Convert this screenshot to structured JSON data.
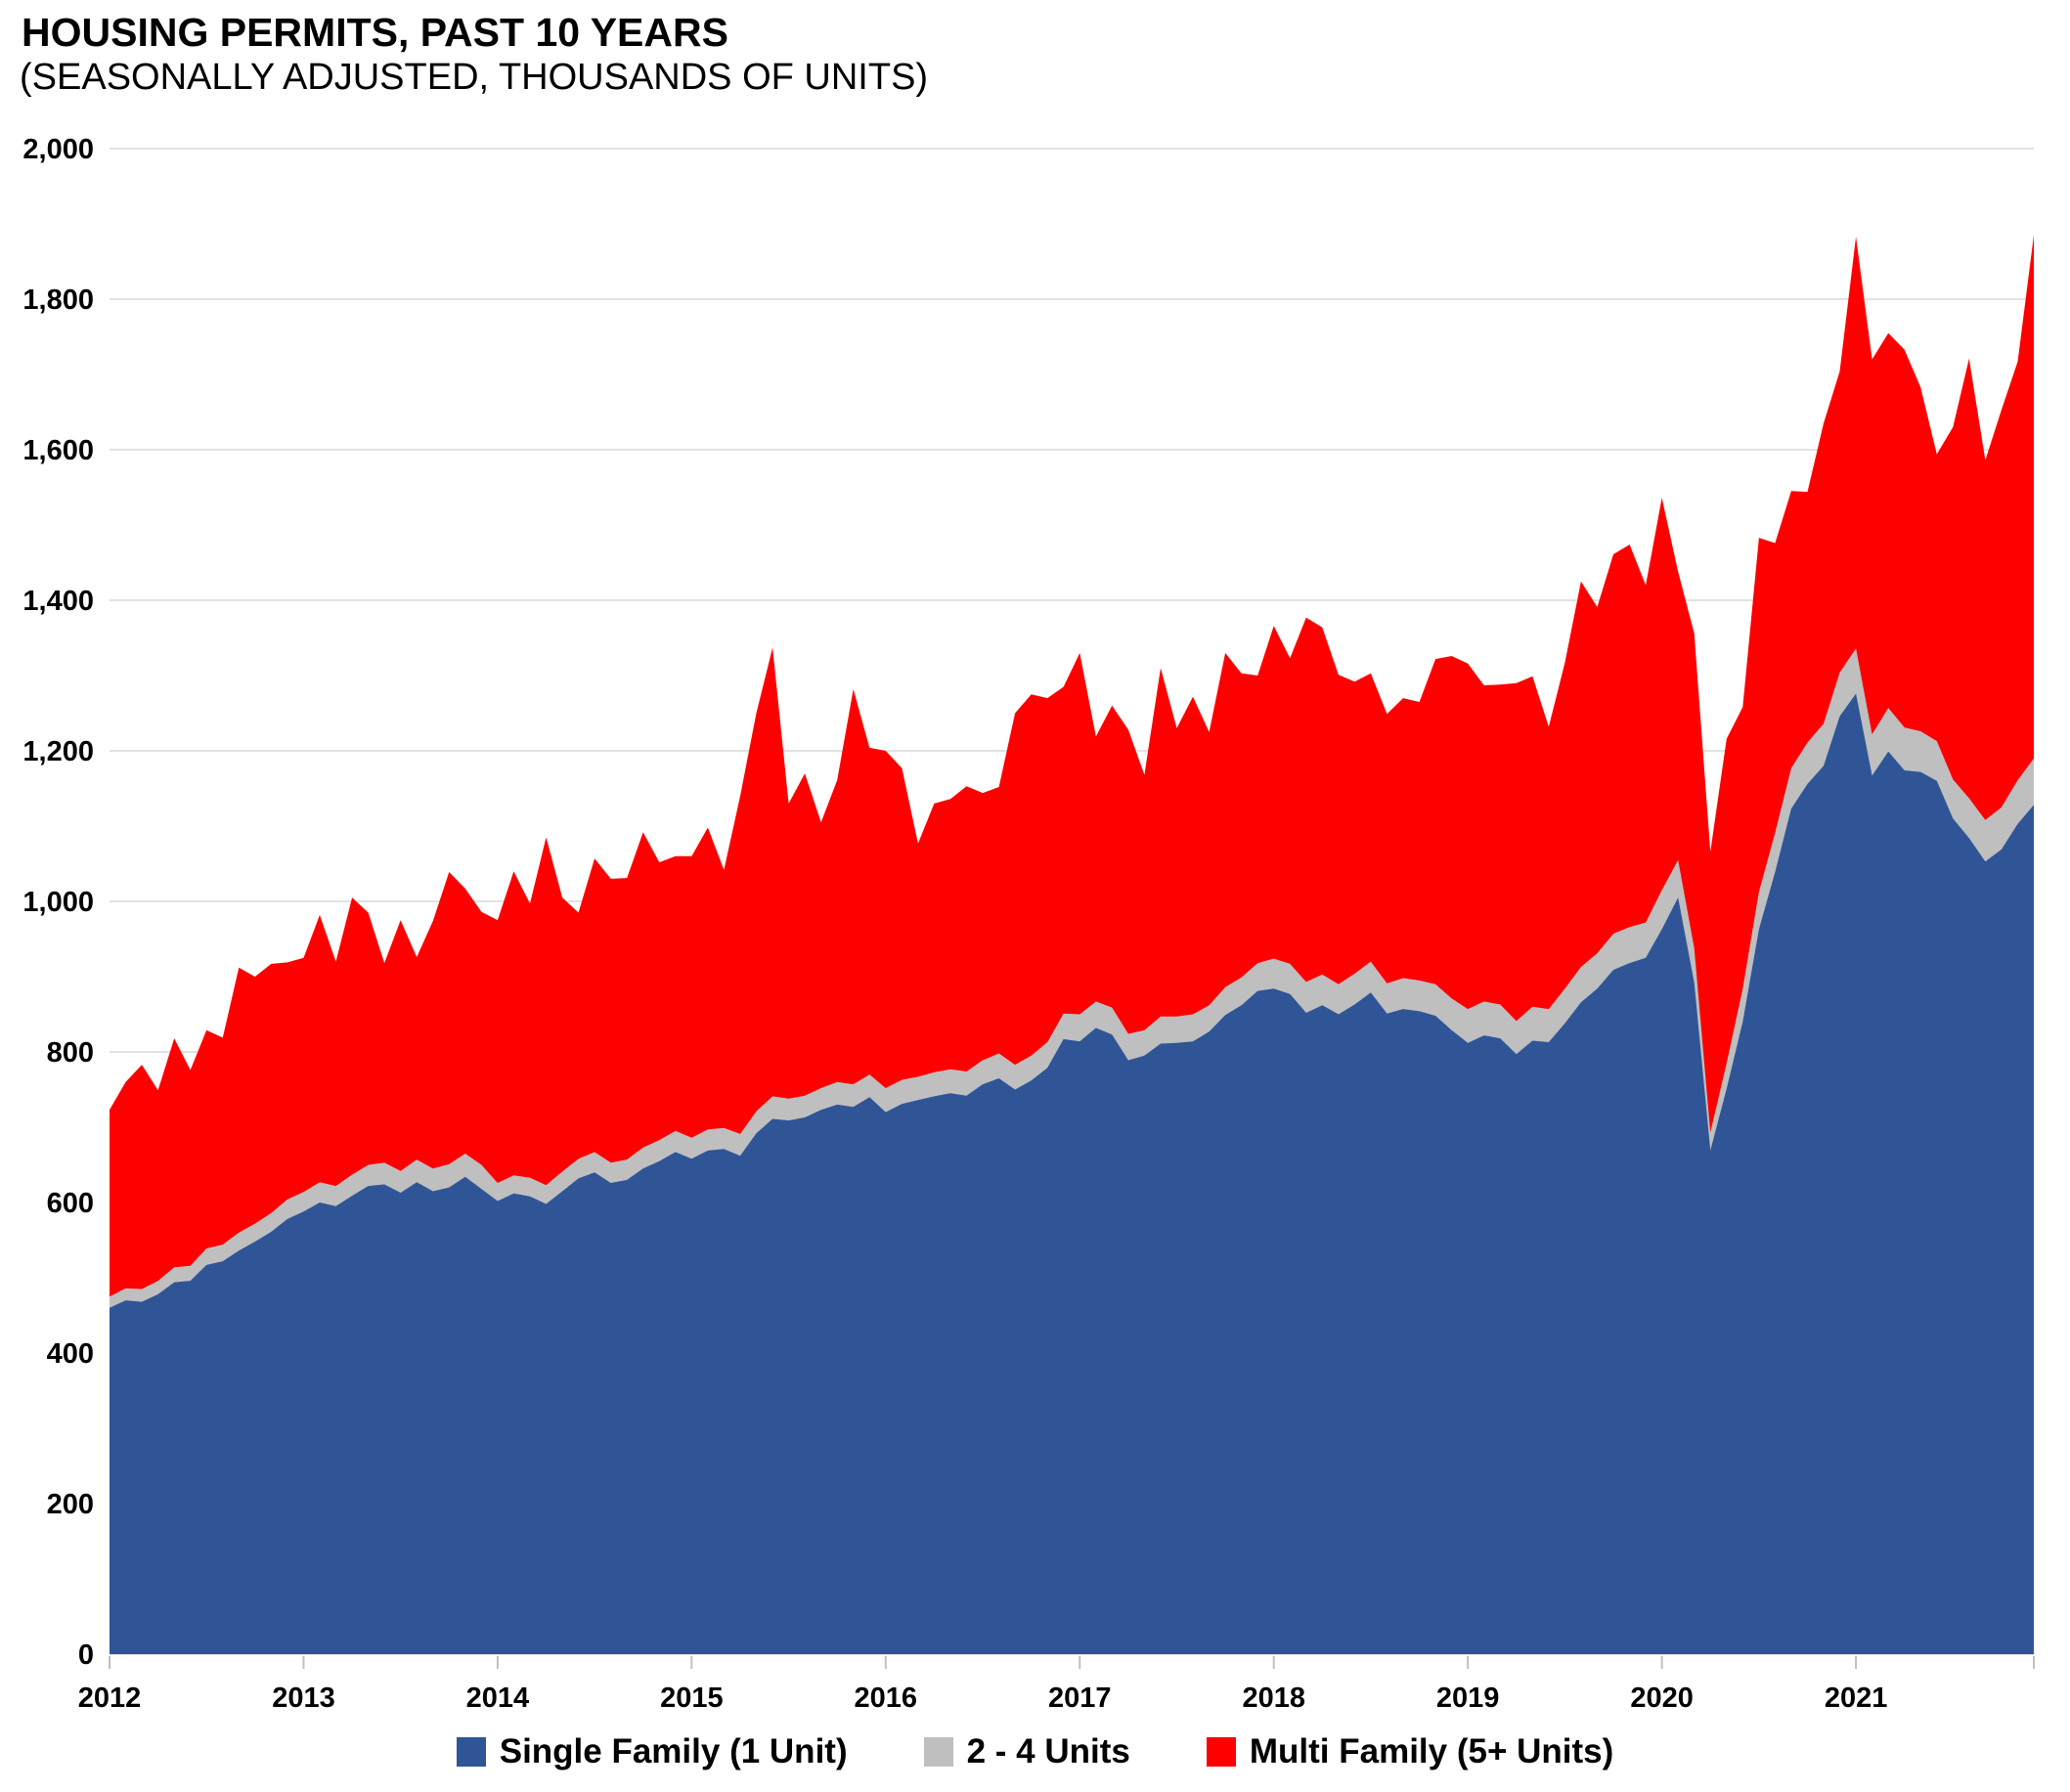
{
  "header": {
    "title": "HOUSING PERMITS, PAST 10 YEARS",
    "subtitle": "(SEASONALLY ADJUSTED, THOUSANDS OF UNITS)"
  },
  "colors": {
    "single_family": "#2F5597",
    "units_2_4": "#BFBFBF",
    "multi_family": "#FF0000",
    "gridline": "#D9D9D9",
    "axis_tick": "#BFBFBF",
    "text": "#000000",
    "background": "#FFFFFF"
  },
  "legend": {
    "position": "bottom-center",
    "items": [
      {
        "label": "Single Family (1 Unit)",
        "color_key": "single_family"
      },
      {
        "label": "2 - 4 Units",
        "color_key": "units_2_4"
      },
      {
        "label": "Multi Family (5+ Units)",
        "color_key": "multi_family"
      }
    ]
  },
  "chart_data": {
    "type": "area",
    "stacked": true,
    "title": "HOUSING PERMITS, PAST 10 YEARS",
    "subtitle": "(SEASONALLY ADJUSTED, THOUSANDS OF UNITS)",
    "x_interval": "monthly",
    "x_start": "2012-01",
    "x_end": "2021-12",
    "x_tick_labels": [
      "2012",
      "2013",
      "2014",
      "2015",
      "2016",
      "2017",
      "2018",
      "2019",
      "2020",
      "2021"
    ],
    "y_ticks": [
      0,
      200,
      400,
      600,
      800,
      1000,
      1200,
      1400,
      1600,
      1800,
      2000
    ],
    "y_tick_labels": [
      "0",
      "200",
      "400",
      "600",
      "800",
      "1,000",
      "1,200",
      "1,400",
      "1,600",
      "1,800",
      "2,000"
    ],
    "ylim": [
      0,
      2000
    ],
    "grid": "horizontal",
    "legend_position": "bottom-center",
    "series": [
      {
        "name": "Single Family (1 Unit)",
        "color_key": "single_family",
        "values": [
          460,
          470,
          468,
          478,
          494,
          496,
          517,
          522,
          536,
          548,
          561,
          578,
          588,
          600,
          595,
          609,
          622,
          624,
          613,
          627,
          615,
          620,
          634,
          618,
          602,
          612,
          608,
          598,
          615,
          632,
          640,
          626,
          630,
          645,
          655,
          667,
          658,
          669,
          671,
          662,
          692,
          711,
          709,
          713,
          723,
          730,
          727,
          740,
          720,
          731,
          736,
          741,
          745,
          742,
          757,
          765,
          750,
          762,
          779,
          817,
          814,
          832,
          823,
          789,
          795,
          811,
          812,
          814,
          827,
          849,
          862,
          881,
          884,
          877,
          852,
          862,
          850,
          863,
          879,
          851,
          857,
          854,
          848,
          829,
          812,
          822,
          818,
          797,
          815,
          813,
          838,
          866,
          884,
          909,
          918,
          925,
          963,
          1005,
          892,
          669,
          751,
          840,
          963,
          1039,
          1123,
          1156,
          1180,
          1246,
          1276,
          1167,
          1199,
          1174,
          1172,
          1160,
          1110,
          1084,
          1053,
          1069,
          1103,
          1128
        ]
      },
      {
        "name": "2 - 4 Units",
        "color_key": "units_2_4",
        "values": [
          15,
          16,
          17,
          18,
          20,
          20,
          22,
          22,
          24,
          24,
          25,
          26,
          26,
          27,
          27,
          28,
          28,
          29,
          29,
          30,
          30,
          31,
          31,
          32,
          24,
          24,
          25,
          25,
          26,
          26,
          27,
          27,
          27,
          28,
          28,
          28,
          28,
          28,
          28,
          29,
          29,
          30,
          29,
          29,
          29,
          30,
          30,
          30,
          32,
          32,
          31,
          32,
          32,
          32,
          32,
          33,
          33,
          33,
          34,
          34,
          36,
          35,
          36,
          35,
          34,
          36,
          35,
          36,
          35,
          37,
          37,
          37,
          40,
          40,
          41,
          41,
          40,
          41,
          41,
          40,
          41,
          41,
          42,
          42,
          45,
          45,
          45,
          44,
          45,
          44,
          46,
          47,
          47,
          48,
          48,
          47,
          52,
          50,
          46,
          24,
          34,
          44,
          50,
          52,
          54,
          55,
          56,
          58,
          60,
          55,
          58,
          57,
          54,
          53,
          52,
          53,
          55,
          56,
          58,
          62
        ]
      },
      {
        "name": "Multi Family (5+ Units)",
        "color_key": "multi_family",
        "values": [
          248,
          274,
          298,
          253,
          304,
          260,
          290,
          275,
          352,
          328,
          331,
          315,
          311,
          355,
          298,
          368,
          335,
          265,
          333,
          269,
          329,
          388,
          352,
          336,
          349,
          404,
          364,
          462,
          364,
          327,
          390,
          377,
          374,
          419,
          369,
          365,
          374,
          401,
          343,
          449,
          529,
          596,
          392,
          428,
          353,
          401,
          525,
          434,
          448,
          414,
          310,
          357,
          359,
          379,
          355,
          354,
          467,
          480,
          457,
          434,
          480,
          352,
          401,
          404,
          339,
          463,
          383,
          422,
          363,
          444,
          404,
          382,
          442,
          406,
          484,
          461,
          411,
          388,
          383,
          358,
          372,
          370,
          432,
          455,
          459,
          420,
          425,
          449,
          439,
          375,
          433,
          512,
          460,
          504,
          508,
          448,
          521,
          383,
          418,
          373,
          431,
          374,
          470,
          385,
          368,
          333,
          399,
          400,
          547,
          498,
          498,
          502,
          457,
          381,
          468,
          584,
          478,
          528,
          556,
          695
        ]
      }
    ]
  }
}
